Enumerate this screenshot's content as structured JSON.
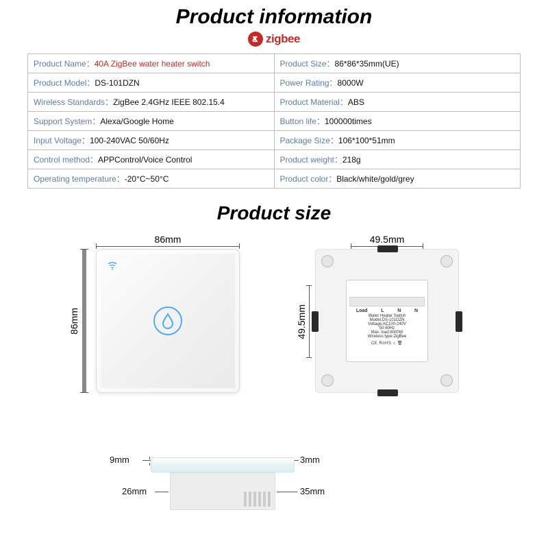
{
  "title": "Product information",
  "brand": "zigbee",
  "brand_color": "#c62828",
  "label_color": "#5f7ba8",
  "specs_left": [
    [
      "Product Name",
      "40A  ZigBee  water  heater switch",
      true
    ],
    [
      "Product Model",
      "DS-101DZN",
      false
    ],
    [
      "Wireless Standards",
      "ZigBee 2.4GHz IEEE 802.15.4",
      false
    ],
    [
      "Support System",
      "Alexa/Google Home",
      false
    ],
    [
      "Input Voltage",
      "100-240VAC 50/60Hz",
      false
    ],
    [
      "Control method",
      "APPControl/Voice Control",
      false
    ],
    [
      "Operating temperature",
      "-20°C~50°C",
      false
    ]
  ],
  "specs_right": [
    [
      "Product Size",
      "86*86*35mm(UE)"
    ],
    [
      "Power Rating",
      "8000W"
    ],
    [
      "Product Material",
      "ABS"
    ],
    [
      "Button life",
      "100000times"
    ],
    [
      "Package Size",
      "106*100*51mm"
    ],
    [
      "Product weight",
      "218g"
    ],
    [
      "Product color",
      "Black/white/gold/grey"
    ]
  ],
  "size_title": "Product size",
  "dims": {
    "front_w": "86mm",
    "front_h": "86mm",
    "back_w": "49.5mm",
    "back_h": "49.5mm",
    "side_front": "9mm",
    "side_body_l": "26mm",
    "side_glass": "3mm",
    "side_depth": "35mm"
  },
  "back_label": {
    "terminals": [
      "Load",
      "L",
      "N",
      "N"
    ],
    "lines": [
      "Water Heater Switch",
      "Model:DS-101DZN",
      "Voltage:AC100-240V",
      "50-60Hz",
      "Max. load:8000W",
      "Wireless type:ZigBee"
    ],
    "badges": "CE  RoHS  ⌂  🗑"
  },
  "icon_color": "#4ea8ff"
}
